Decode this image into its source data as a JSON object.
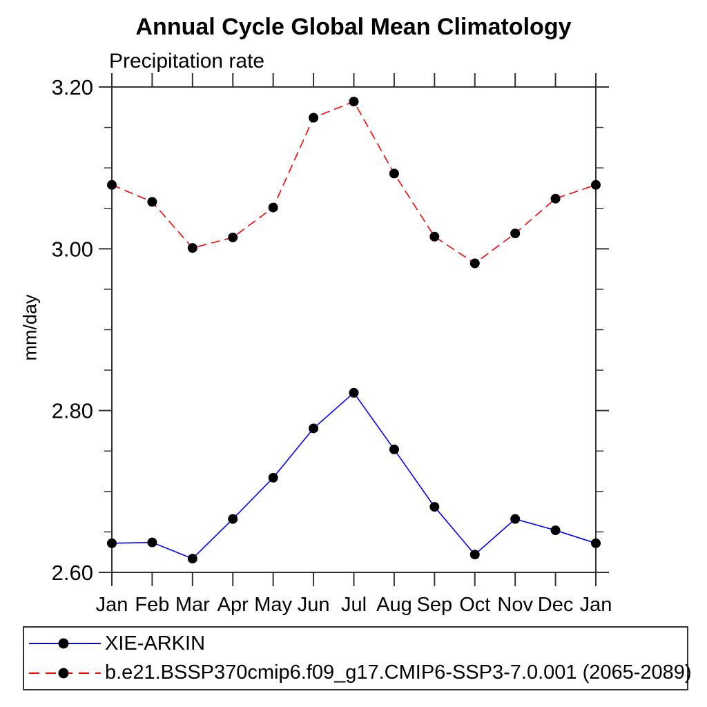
{
  "chart_data": {
    "type": "line",
    "title": "Annual Cycle Global Mean Climatology",
    "subtitle_left": "Precipitation rate",
    "ylabel": "mm/day",
    "categories": [
      "Jan",
      "Feb",
      "Mar",
      "Apr",
      "May",
      "Jun",
      "Jul",
      "Aug",
      "Sep",
      "Oct",
      "Nov",
      "Dec",
      "Jan"
    ],
    "series": [
      {
        "name": "XIE-ARKIN",
        "color": "#0000ff",
        "line_style": "solid",
        "marker": "filled-circle",
        "marker_color": "#000000",
        "values": [
          2.636,
          2.637,
          2.617,
          2.666,
          2.717,
          2.778,
          2.822,
          2.752,
          2.681,
          2.622,
          2.666,
          2.652,
          2.636
        ]
      },
      {
        "name": "b.e21.BSSP370cmip6.f09_g17.CMIP6-SSP3-7.0.001 (2065-2089)",
        "color": "#ff0000",
        "line_style": "dashed",
        "marker": "filled-circle",
        "marker_color": "#000000",
        "values": [
          3.079,
          3.058,
          3.001,
          3.014,
          3.051,
          3.162,
          3.182,
          3.093,
          3.015,
          2.982,
          3.019,
          3.062,
          3.079
        ]
      }
    ],
    "ylim": [
      2.6,
      3.2
    ],
    "yticks_major": [
      2.6,
      2.8,
      3.0,
      3.2
    ],
    "ytick_labels": [
      "2.60",
      "2.80",
      "3.00",
      "3.20"
    ],
    "ytick_minor_step": 0.05,
    "grid": false,
    "legend_position": "bottom-box",
    "frame_color": "#333333"
  }
}
